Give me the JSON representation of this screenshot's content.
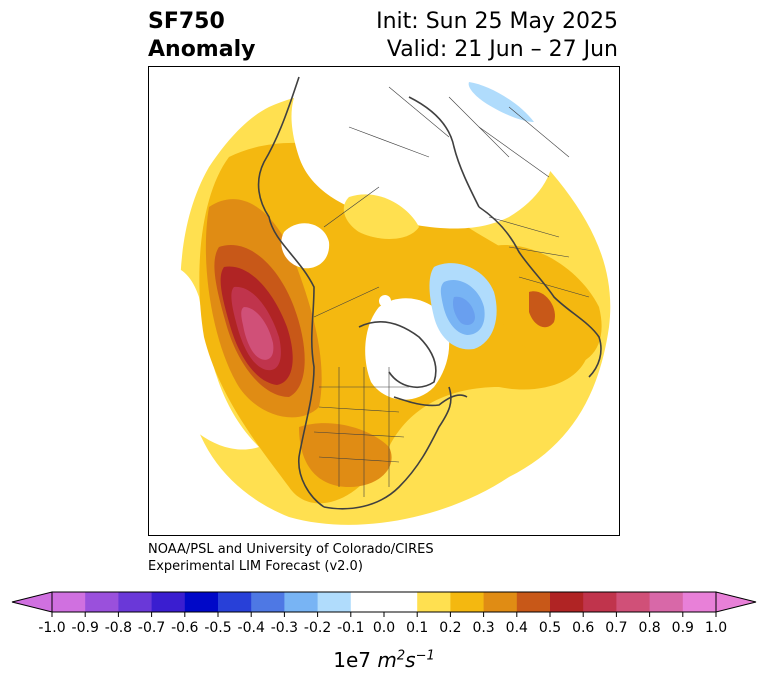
{
  "title": {
    "variable": "SF750",
    "kind": "Anomaly",
    "init": "Init: Sun 25 May 2025",
    "valid": "Valid: 21 Jun – 27 Jun"
  },
  "credit": {
    "line1": "NOAA/PSL and University of Colorado/CIRES",
    "line2": "Experimental LIM Forecast (v2.0)"
  },
  "colorbar": {
    "ticks": [
      "-1.0",
      "-0.9",
      "-0.8",
      "-0.7",
      "-0.6",
      "-0.5",
      "-0.4",
      "-0.3",
      "-0.2",
      "-0.1",
      "0.0",
      "0.1",
      "0.2",
      "0.3",
      "0.4",
      "0.5",
      "0.6",
      "0.7",
      "0.8",
      "0.9",
      "1.0"
    ],
    "colors": [
      "#d070e0",
      "#9a50dc",
      "#6a38d8",
      "#3a1ed0",
      "#0008c8",
      "#2840d8",
      "#4e78e4",
      "#78b4f4",
      "#b0dcfc",
      "#ffffff",
      "#ffffff",
      "#ffe050",
      "#f4b810",
      "#e08c14",
      "#c85818",
      "#b02424",
      "#c0344c",
      "#d05078",
      "#d868a8",
      "#e880d8"
    ],
    "unit_prefix": "1e7",
    "unit": "m",
    "unit_exp1": "2",
    "unit_mid": "s",
    "unit_exp2": "−1"
  },
  "map": {
    "projection": "north-polar-stereographic",
    "region": "Northern Hemisphere (North America / Arctic view)",
    "features": [
      "positive anomaly over North Pacific / Gulf of Alaska (peak 0.7–0.8)",
      "positive anomaly over central United States (0.3–0.4)",
      "negative anomaly near Greenland / Iceland (-0.3)",
      "weak negative anomaly over northern Eurasia (-0.1 to -0.2)"
    ]
  }
}
